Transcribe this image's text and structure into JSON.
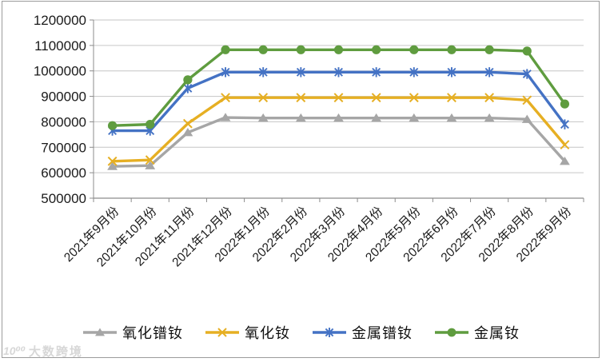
{
  "watermark": {
    "logo": "10⁰⁰",
    "text": "大数跨境"
  },
  "chart_data": {
    "type": "line",
    "title": "",
    "xlabel": "",
    "ylabel": "",
    "ylim": [
      500000,
      1200000
    ],
    "y_step": 100000,
    "grid": true,
    "legend_position": "bottom",
    "categories": [
      "2021年9月份",
      "2021年10月份",
      "2021年11月份",
      "2021年12月份",
      "2022年1月份",
      "2022年2月份",
      "2022年3月份",
      "2022年4月份",
      "2022年5月份",
      "2022年6月份",
      "2022年7月份",
      "2022年8月份",
      "2022年9月份"
    ],
    "series": [
      {
        "name": "氧化镨钕",
        "color": "#A6A6A6",
        "marker": "triangle",
        "values": [
          625000,
          628000,
          758000,
          817000,
          815000,
          815000,
          815000,
          815000,
          815000,
          815000,
          815000,
          810000,
          645000
        ]
      },
      {
        "name": "氧化钕",
        "color": "#E6AF23",
        "marker": "x",
        "values": [
          645000,
          650000,
          793000,
          895000,
          895000,
          895000,
          895000,
          895000,
          895000,
          895000,
          895000,
          885000,
          710000
        ]
      },
      {
        "name": "金属镨钕",
        "color": "#4472C4",
        "marker": "asterisk",
        "values": [
          765000,
          765000,
          932000,
          995000,
          995000,
          995000,
          995000,
          995000,
          995000,
          995000,
          995000,
          988000,
          790000
        ]
      },
      {
        "name": "金属钕",
        "color": "#5F9C3F",
        "marker": "circle",
        "values": [
          785000,
          790000,
          965000,
          1083000,
          1083000,
          1083000,
          1083000,
          1083000,
          1083000,
          1083000,
          1083000,
          1078000,
          870000
        ]
      }
    ],
    "axis_color": "#8c8c8c",
    "grid_color": "#c6c6c6",
    "tick_label_color": "#1a1a1a"
  }
}
